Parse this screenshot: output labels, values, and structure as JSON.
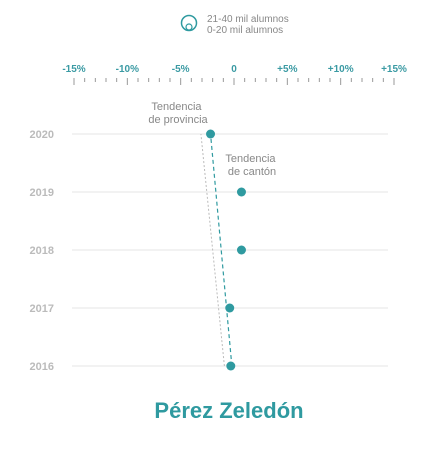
{
  "chart_data": {
    "type": "scatter",
    "title": "Pérez Zeledón",
    "legend": {
      "placement": "top-center",
      "entries": [
        "21-40 mil alumnos",
        "0-20 mil alumnos"
      ]
    },
    "x_ticks": [
      "-15%",
      "-10%",
      "-5%",
      "0",
      "+5%",
      "+10%",
      "+15%"
    ],
    "xlim": [
      -15,
      15
    ],
    "years": [
      "2020",
      "2019",
      "2018",
      "2017",
      "2016"
    ],
    "points": [
      {
        "year": "2020",
        "x": -2.2
      },
      {
        "year": "2019",
        "x": 0.7
      },
      {
        "year": "2018",
        "x": 0.7
      },
      {
        "year": "2017",
        "x": -0.4
      },
      {
        "year": "2016",
        "x": -0.3
      }
    ],
    "trend_canton": {
      "label": "Tendencia de cantón",
      "from": {
        "year": "2016",
        "x": -0.2
      },
      "to": {
        "year": "2020",
        "x": -2.2
      }
    },
    "trend_provincia": {
      "label": "Tendencia de provincia",
      "from": {
        "year": "2016",
        "x": -0.9
      },
      "to": {
        "year": "2020",
        "x": -3.1
      }
    },
    "annotations": [
      {
        "lines": [
          "Tendencia",
          "de provincia"
        ]
      },
      {
        "lines": [
          "Tendencia",
          "de cantón"
        ]
      }
    ],
    "grid": true,
    "colors": {
      "point": "#2f9aa0",
      "canton_line": "#2f9aa0",
      "provincia_line": "#bbbbbb",
      "tick_label": "#3a9aa3",
      "year_label": "#bbbbbb"
    }
  }
}
